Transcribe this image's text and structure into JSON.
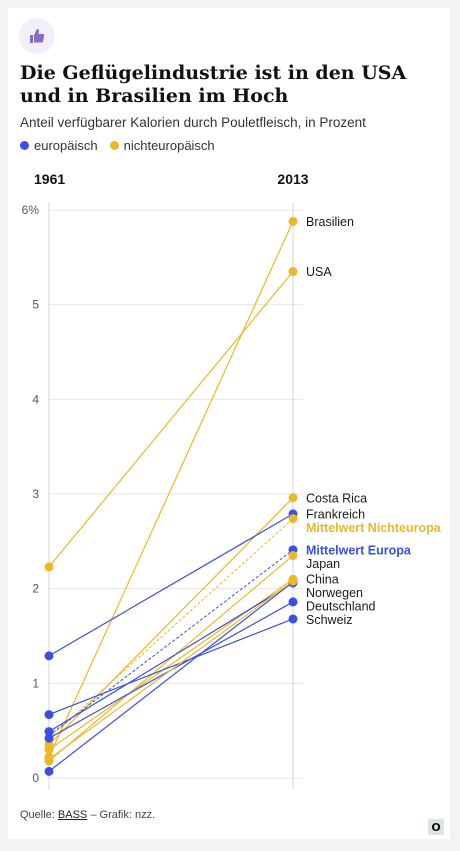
{
  "title": "Die Geflügelindustrie ist in den USA und in Brasilien im Hoch",
  "subtitle": "Anteil verfügbarer Kalorien durch Pouletfleisch, in Prozent",
  "legend": [
    {
      "label": "europäisch",
      "color": "#3c50e0"
    },
    {
      "label": "nichteuropäisch",
      "color": "#e9b92b"
    }
  ],
  "source": {
    "prefix": "Quelle: ",
    "link": "BASS",
    "suffix": " – Grafik: nzz."
  },
  "logo": "O",
  "icons": {
    "badge": "thumbs-up-icon"
  },
  "colors": {
    "europe": "#3c50e0",
    "noneurope": "#e9b92b",
    "grid": "#e6e6e6",
    "axis": "#d5d5d5"
  },
  "chart_data": {
    "type": "slope",
    "x": [
      "1961",
      "2013"
    ],
    "ylim": [
      0,
      6
    ],
    "yticks": [
      "0",
      "1",
      "2",
      "3",
      "4",
      "5",
      "6%"
    ],
    "series": [
      {
        "name": "Brasilien",
        "group": "noneurope",
        "values": [
          0.22,
          5.88
        ]
      },
      {
        "name": "USA",
        "group": "noneurope",
        "values": [
          2.23,
          5.35
        ]
      },
      {
        "name": "Costa Rica",
        "group": "noneurope",
        "values": [
          0.35,
          2.96
        ]
      },
      {
        "name": "Frankreich",
        "group": "europe",
        "values": [
          1.29,
          2.79
        ]
      },
      {
        "name": "Mittelwert Nichteuropa",
        "group": "noneurope",
        "mean": true,
        "values": [
          0.42,
          2.74
        ]
      },
      {
        "name": "Mittelwert Europa",
        "group": "europe",
        "mean": true,
        "values": [
          0.45,
          2.41
        ]
      },
      {
        "name": "Japan",
        "group": "noneurope",
        "values": [
          0.18,
          2.35
        ]
      },
      {
        "name": "China",
        "group": "noneurope",
        "values": [
          0.3,
          2.1
        ]
      },
      {
        "name": "Norwegen",
        "group": "europe",
        "values": [
          0.07,
          2.07
        ]
      },
      {
        "name": "Deutschland",
        "group": "europe",
        "values": [
          0.42,
          1.86
        ]
      },
      {
        "name": "Schweiz",
        "group": "europe",
        "values": [
          0.67,
          1.68
        ]
      },
      {
        "name": "",
        "group": "europe",
        "values": [
          0.49,
          2.06
        ]
      },
      {
        "name": "",
        "group": "noneurope",
        "values": [
          0.2,
          2.08
        ]
      }
    ]
  }
}
